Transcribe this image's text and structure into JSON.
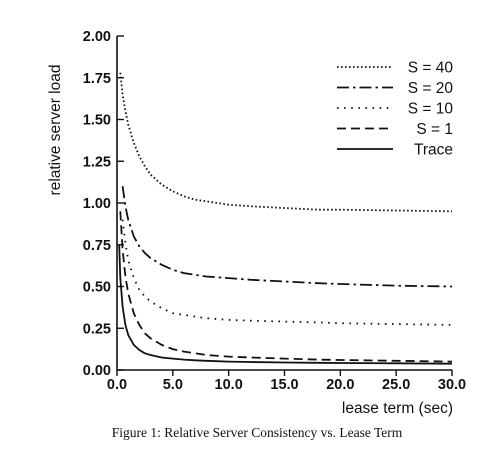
{
  "chart_data": {
    "type": "line",
    "title": "",
    "xlabel": "lease term (sec)",
    "ylabel": "relative server load",
    "xlim": [
      0,
      30
    ],
    "ylim": [
      0,
      2
    ],
    "x_ticks": [
      {
        "value": 0,
        "label": "0.0"
      },
      {
        "value": 5,
        "label": "5.0"
      },
      {
        "value": 10,
        "label": "10.0"
      },
      {
        "value": 15,
        "label": "15.0"
      },
      {
        "value": 20,
        "label": "20.0"
      },
      {
        "value": 25,
        "label": "25.0"
      },
      {
        "value": 30,
        "label": "30.0"
      }
    ],
    "y_ticks": [
      {
        "value": 0,
        "label": "0.00"
      },
      {
        "value": 0.25,
        "label": "0.25"
      },
      {
        "value": 0.5,
        "label": "0.50"
      },
      {
        "value": 0.75,
        "label": "0.75"
      },
      {
        "value": 1.0,
        "label": "1.00"
      },
      {
        "value": 1.25,
        "label": "1.25"
      },
      {
        "value": 1.5,
        "label": "1.50"
      },
      {
        "value": 1.75,
        "label": "1.75"
      },
      {
        "value": 2.0,
        "label": "2.00"
      }
    ],
    "grid": false,
    "legend_position": "top-right",
    "series": [
      {
        "name": "S = 40",
        "style": "dotted-dense",
        "x": [
          0.3,
          0.5,
          0.75,
          1,
          1.5,
          2,
          2.5,
          3,
          4,
          5,
          6,
          7,
          8,
          10,
          12,
          15,
          18,
          20,
          25,
          30
        ],
        "y": [
          1.78,
          1.65,
          1.55,
          1.47,
          1.36,
          1.28,
          1.22,
          1.17,
          1.11,
          1.07,
          1.04,
          1.02,
          1.01,
          0.99,
          0.98,
          0.97,
          0.96,
          0.96,
          0.955,
          0.95
        ]
      },
      {
        "name": "S = 20",
        "style": "dash-dot",
        "x": [
          0.5,
          0.75,
          1,
          1.5,
          2,
          2.5,
          3,
          4,
          5,
          6,
          7,
          8,
          10,
          12,
          15,
          18,
          20,
          25,
          30
        ],
        "y": [
          1.1,
          0.98,
          0.9,
          0.8,
          0.74,
          0.7,
          0.67,
          0.63,
          0.6,
          0.58,
          0.57,
          0.56,
          0.55,
          0.54,
          0.53,
          0.52,
          0.515,
          0.505,
          0.5
        ]
      },
      {
        "name": "S = 10",
        "style": "dotted-sparse",
        "x": [
          0.5,
          0.75,
          1,
          1.5,
          2,
          2.5,
          3,
          4,
          5,
          6,
          7,
          8,
          10,
          12,
          15,
          18,
          20,
          25,
          30
        ],
        "y": [
          0.9,
          0.76,
          0.66,
          0.55,
          0.48,
          0.44,
          0.41,
          0.37,
          0.34,
          0.33,
          0.32,
          0.31,
          0.3,
          0.295,
          0.29,
          0.285,
          0.28,
          0.275,
          0.27
        ]
      },
      {
        "name": "S = 1",
        "style": "dashed",
        "x": [
          0.3,
          0.5,
          0.75,
          1,
          1.5,
          2,
          2.5,
          3,
          4,
          5,
          6,
          7,
          8,
          10,
          12,
          15,
          18,
          20,
          25,
          30
        ],
        "y": [
          0.95,
          0.72,
          0.56,
          0.46,
          0.34,
          0.27,
          0.22,
          0.19,
          0.15,
          0.125,
          0.11,
          0.1,
          0.09,
          0.08,
          0.075,
          0.068,
          0.062,
          0.06,
          0.055,
          0.05
        ]
      },
      {
        "name": "Trace",
        "style": "solid",
        "x": [
          0.2,
          0.3,
          0.5,
          0.75,
          1,
          1.5,
          2,
          2.5,
          3,
          4,
          5,
          6,
          7,
          8,
          10,
          12,
          15,
          18,
          20,
          25,
          30
        ],
        "y": [
          0.75,
          0.55,
          0.38,
          0.27,
          0.21,
          0.15,
          0.12,
          0.1,
          0.09,
          0.075,
          0.068,
          0.062,
          0.058,
          0.055,
          0.05,
          0.048,
          0.045,
          0.043,
          0.042,
          0.04,
          0.038
        ]
      }
    ]
  },
  "caption": "Figure 1: Relative Server Consistency vs. Lease Term"
}
